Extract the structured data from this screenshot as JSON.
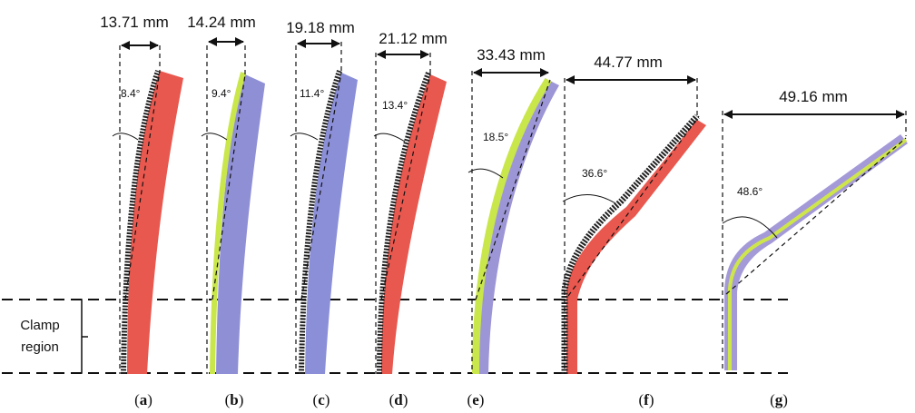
{
  "clamp_label": [
    "Clamp",
    "region"
  ],
  "samples": [
    {
      "id": "a",
      "label": "(a)",
      "width": "13.71 mm",
      "angle": "8.4°",
      "colors": [
        "#e8584f",
        "#f07a6e"
      ]
    },
    {
      "id": "b",
      "label": "(b)",
      "width": "14.24 mm",
      "angle": "9.4°",
      "colors": [
        "#c9e64a",
        "#8f8fd6"
      ]
    },
    {
      "id": "c",
      "label": "(c)",
      "width": "19.18 mm",
      "angle": "11.4°",
      "colors": [
        "#7a7fd0",
        "#a9aee6"
      ]
    },
    {
      "id": "d",
      "label": "(d)",
      "width": "21.12 mm",
      "angle": "13.4°",
      "colors": [
        "#e8584f",
        "#f09088"
      ]
    },
    {
      "id": "e",
      "label": "(e)",
      "width": "33.43 mm",
      "angle": "18.5°",
      "colors": [
        "#c9e64a",
        "#9d96d6"
      ]
    },
    {
      "id": "f",
      "label": "(f)",
      "width": "44.77 mm",
      "angle": "36.6°",
      "colors": [
        "#e8584f",
        "#f07a6e"
      ]
    },
    {
      "id": "g",
      "label": "(g)",
      "width": "49.16 mm",
      "angle": "48.6°",
      "colors": [
        "#a59ad8",
        "#cfe64a"
      ]
    }
  ]
}
